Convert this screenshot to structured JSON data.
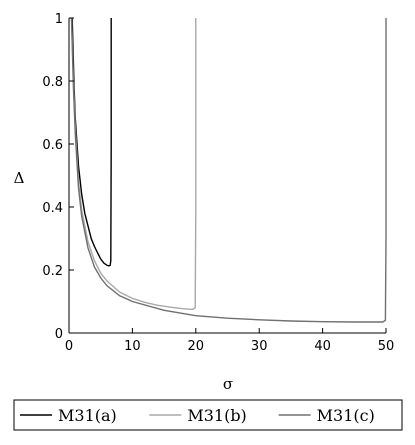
{
  "chart_data": {
    "type": "line",
    "xlabel": "σ",
    "ylabel": "Δ",
    "xlim": [
      0,
      50
    ],
    "ylim": [
      0,
      1
    ],
    "x_ticks": [
      0,
      10,
      20,
      30,
      40,
      50
    ],
    "y_ticks": [
      0,
      0.2,
      0.4,
      0.6,
      0.8,
      1
    ],
    "x_tick_labels": [
      "0",
      "10",
      "20",
      "30",
      "40",
      "50"
    ],
    "y_tick_labels": [
      "0",
      "0.2",
      "0.4",
      "0.6",
      "0.8",
      "1"
    ],
    "grid": false,
    "legend_position": "bottom",
    "series": [
      {
        "name": "M31(a)",
        "color": "#000000",
        "x": [
          0.5,
          0.8,
          1,
          1.5,
          2,
          2.5,
          3,
          3.5,
          4,
          4.5,
          5,
          5.5,
          6,
          6.3,
          6.5,
          6.6,
          6.65,
          6.65
        ],
        "y": [
          1.0,
          0.78,
          0.68,
          0.53,
          0.44,
          0.38,
          0.34,
          0.3,
          0.275,
          0.255,
          0.235,
          0.222,
          0.215,
          0.213,
          0.215,
          0.23,
          0.6,
          1.0
        ]
      },
      {
        "name": "M31(b)",
        "color": "#a8a8a8",
        "x": [
          0.4,
          0.7,
          1,
          1.5,
          2,
          3,
          4,
          5,
          6,
          8,
          10,
          12,
          14,
          16,
          18,
          19.5,
          19.9,
          20,
          20
        ],
        "y": [
          1.0,
          0.8,
          0.65,
          0.48,
          0.39,
          0.29,
          0.23,
          0.19,
          0.165,
          0.13,
          0.11,
          0.097,
          0.088,
          0.082,
          0.077,
          0.075,
          0.08,
          0.4,
          1.0
        ]
      },
      {
        "name": "M31(c)",
        "color": "#707070",
        "x": [
          0.4,
          0.7,
          1,
          1.5,
          2,
          3,
          4,
          5,
          6,
          8,
          10,
          15,
          20,
          25,
          30,
          35,
          40,
          45,
          49.5,
          49.9,
          50,
          50
        ],
        "y": [
          1.0,
          0.78,
          0.63,
          0.46,
          0.37,
          0.27,
          0.21,
          0.175,
          0.15,
          0.118,
          0.1,
          0.072,
          0.055,
          0.047,
          0.042,
          0.038,
          0.036,
          0.035,
          0.035,
          0.04,
          0.3,
          1.0
        ]
      }
    ]
  }
}
